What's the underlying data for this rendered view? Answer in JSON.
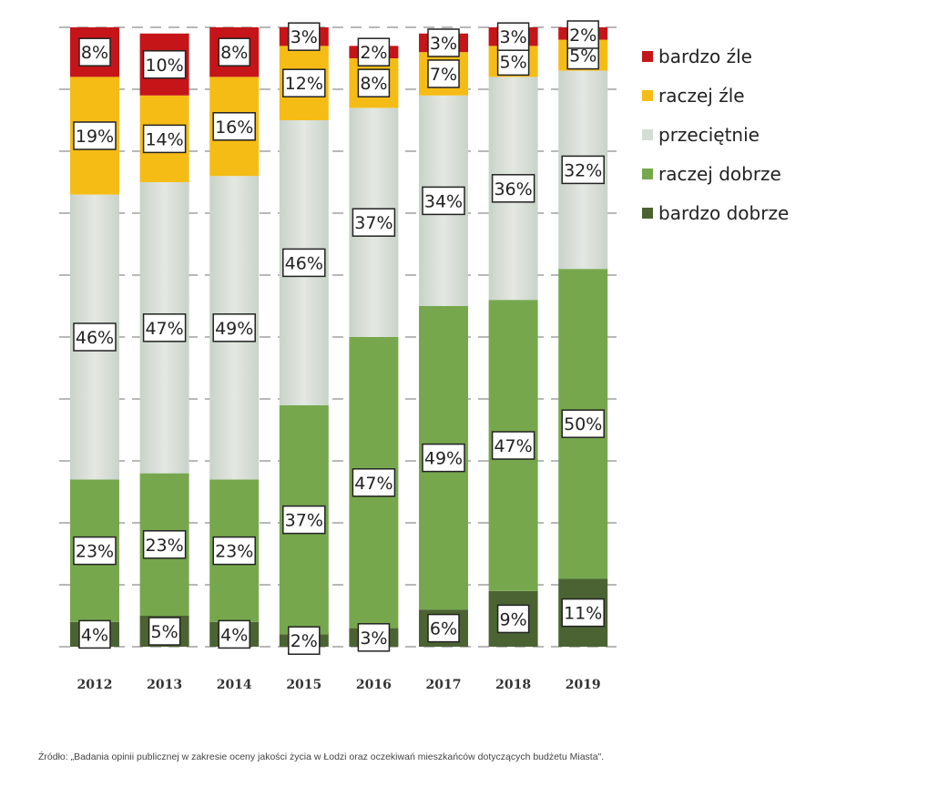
{
  "chart_data": {
    "type": "bar",
    "stacked": true,
    "categories": [
      "2012",
      "2013",
      "2014",
      "2015",
      "2016",
      "2017",
      "2018",
      "2019"
    ],
    "series": [
      {
        "name": "bardzo dobrze",
        "color": "#4b6332",
        "values": [
          4,
          5,
          4,
          2,
          3,
          6,
          9,
          11
        ]
      },
      {
        "name": "raczej dobrze",
        "color": "#76a74d",
        "values": [
          23,
          23,
          23,
          37,
          47,
          49,
          47,
          50
        ]
      },
      {
        "name": "przeciętnie",
        "color": "#d5dcd5",
        "values": [
          46,
          47,
          49,
          46,
          37,
          34,
          36,
          32
        ]
      },
      {
        "name": "raczej źle",
        "color": "#f6bc16",
        "values": [
          19,
          14,
          16,
          12,
          8,
          7,
          5,
          5
        ]
      },
      {
        "name": "bardzo źle",
        "color": "#c51518",
        "values": [
          8,
          10,
          8,
          3,
          2,
          3,
          3,
          2
        ]
      }
    ],
    "ylim": [
      0,
      100
    ],
    "value_suffix": "%",
    "legend_position": "right",
    "grid": true
  },
  "source_text": "Źródło: „Badania opinii publicznej w zakresie oceny jakości życia w Łodzi oraz oczekiwań mieszkańców dotyczących budżetu Miasta\"."
}
